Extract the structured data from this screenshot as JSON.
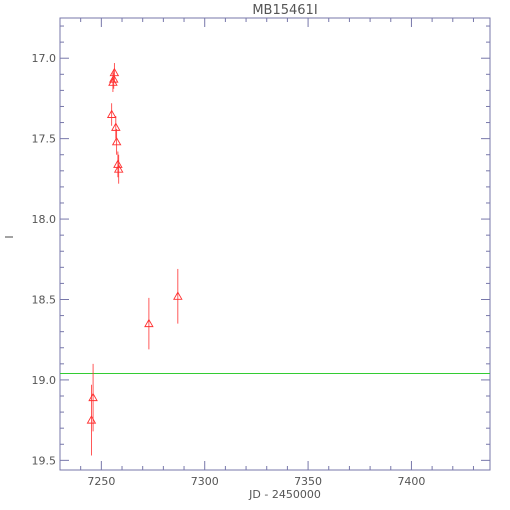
{
  "chart_data": {
    "type": "scatter",
    "title": "MB15461I",
    "xlabel": "JD - 2450000",
    "ylabel": "I",
    "xlim": [
      7230,
      7438
    ],
    "ylim": [
      19.56,
      16.75
    ],
    "y_inverted": true,
    "xticks": [
      7250,
      7300,
      7350,
      7400
    ],
    "xtick_labels": [
      "7250",
      "7300",
      "7350",
      "7400"
    ],
    "yticks": [
      17.0,
      17.5,
      18.0,
      18.5,
      19.0,
      19.5
    ],
    "ytick_labels": [
      "17.0",
      "17.5",
      "18.0",
      "18.5",
      "19.0",
      "19.5"
    ],
    "grid": false,
    "series": [
      {
        "marker": "triangle-open",
        "color": "#ff3030",
        "points": [
          {
            "x": 7245.2,
            "y": 19.25,
            "err": 0.22
          },
          {
            "x": 7246.0,
            "y": 19.11,
            "err": 0.21
          },
          {
            "x": 7255.0,
            "y": 17.35,
            "err": 0.07
          },
          {
            "x": 7255.6,
            "y": 17.15,
            "err": 0.06
          },
          {
            "x": 7256.0,
            "y": 17.13,
            "err": 0.06
          },
          {
            "x": 7256.3,
            "y": 17.09,
            "err": 0.06
          },
          {
            "x": 7257.0,
            "y": 17.43,
            "err": 0.07
          },
          {
            "x": 7257.4,
            "y": 17.52,
            "err": 0.08
          },
          {
            "x": 7258.0,
            "y": 17.66,
            "err": 0.08
          },
          {
            "x": 7258.4,
            "y": 17.69,
            "err": 0.09
          },
          {
            "x": 7273.0,
            "y": 18.65,
            "err": 0.16
          },
          {
            "x": 7287.0,
            "y": 18.48,
            "err": 0.17
          }
        ]
      }
    ],
    "reference_line": {
      "y": 18.96,
      "color": "#33cc33"
    }
  }
}
